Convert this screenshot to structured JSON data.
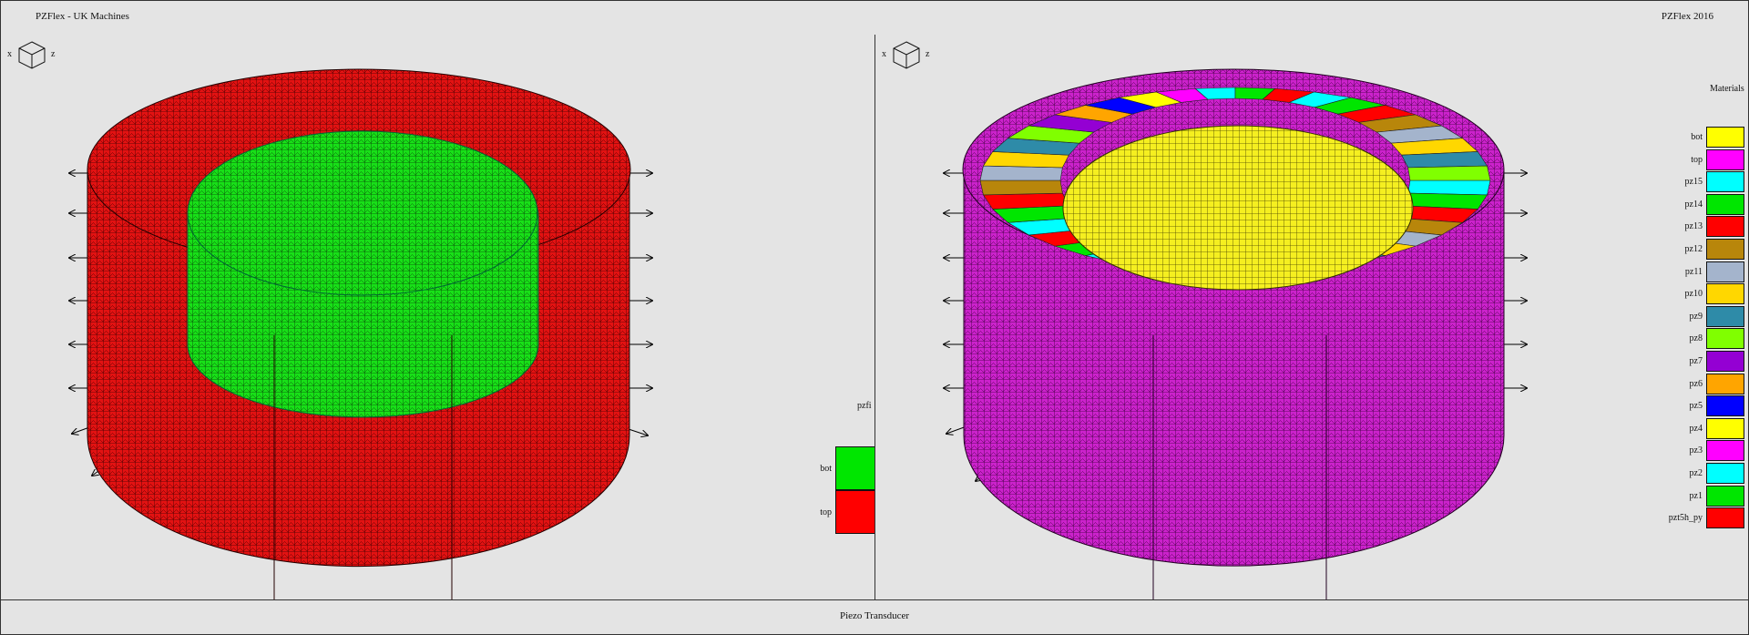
{
  "header": {
    "app_title": "PZFlex - UK Machines",
    "version": "PZFlex   2016"
  },
  "footer": {
    "caption": "Piezo Transducer"
  },
  "viewports": {
    "left": {
      "axis_x": "x",
      "axis_z": "z",
      "legend": {
        "title": "pzfi",
        "items": [
          {
            "label": "bot",
            "color": "#00e600"
          },
          {
            "label": "top",
            "color": "#ff0000"
          }
        ]
      },
      "outer_color": "#e31212",
      "inner_color": "#18e018"
    },
    "right": {
      "axis_x": "x",
      "axis_z": "z",
      "legend": {
        "title": "Materials",
        "items": [
          {
            "label": "bot",
            "color": "#ffff00"
          },
          {
            "label": "top",
            "color": "#ff00ff"
          },
          {
            "label": "pz15",
            "color": "#00ffff"
          },
          {
            "label": "pz14",
            "color": "#00e600"
          },
          {
            "label": "pz13",
            "color": "#ff0000"
          },
          {
            "label": "pz12",
            "color": "#b8860b"
          },
          {
            "label": "pz11",
            "color": "#a4b4cc"
          },
          {
            "label": "pz10",
            "color": "#ffd700"
          },
          {
            "label": "pz9",
            "color": "#2e8ba8"
          },
          {
            "label": "pz8",
            "color": "#80ff00"
          },
          {
            "label": "pz7",
            "color": "#9400d3"
          },
          {
            "label": "pz6",
            "color": "#ffa500"
          },
          {
            "label": "pz5",
            "color": "#0000ff"
          },
          {
            "label": "pz4",
            "color": "#ffff00"
          },
          {
            "label": "pz3",
            "color": "#ff00ff"
          },
          {
            "label": "pz2",
            "color": "#00ffff"
          },
          {
            "label": "pz1",
            "color": "#00e600"
          },
          {
            "label": "pzt5h_py",
            "color": "#ff0000"
          }
        ]
      },
      "outer_color": "#cc22cc",
      "inner_color": "#f5ef20"
    }
  }
}
